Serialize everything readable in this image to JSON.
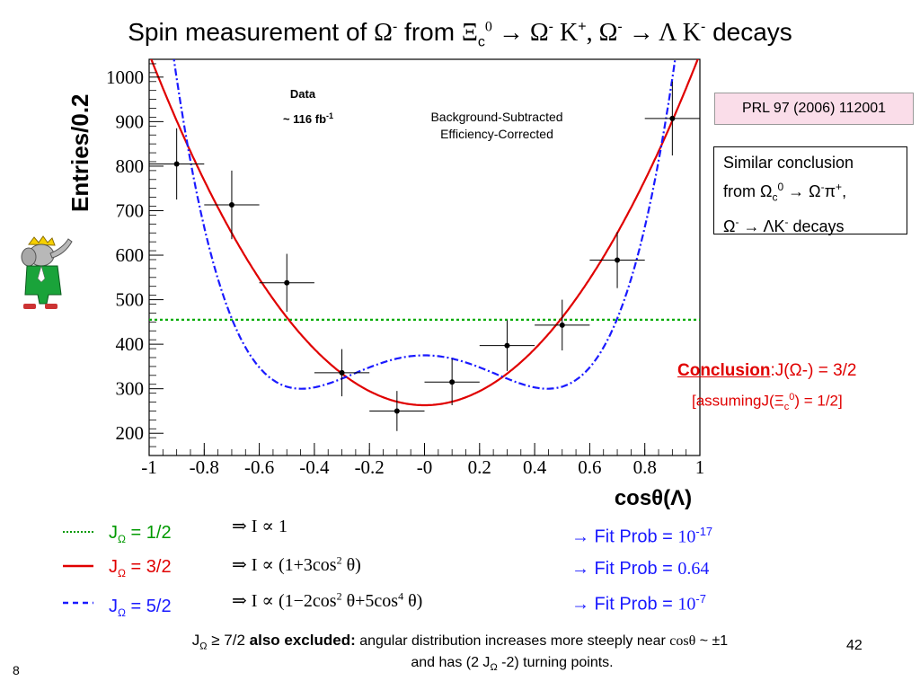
{
  "slide": {
    "title": {
      "prefix": "Spin measurement of ",
      "omega1": "Ω",
      "minus1": "-",
      "from": " from   ",
      "xi": "Ξ",
      "c": "c",
      "zero": "0",
      "arrow1": " → Ω",
      "minus2": "-",
      "k": " K",
      "plus": "+",
      "comma": ", Ω",
      "minus3": "-",
      "arrow2": " → Λ K",
      "minus4": "-",
      "decays": "  decays"
    },
    "reference": "PRL 97 (2006) 112001",
    "similar_box": {
      "line1": "Similar conclusion",
      "from": "from Ω",
      "c": "c",
      "zero": "0",
      "arrow": " → Ω",
      "minus1": "-",
      "pi": "π",
      "plus": "+",
      "comma": ",",
      "omega": "Ω",
      "minus2": "-",
      "arrow2": " → ΛK",
      "minus3": "-",
      "decays": " decays"
    },
    "conclusion": {
      "label": "Conclusion",
      "colon": ":",
      "j_text": "J(Ω-) = 3/2",
      "assume_prefix": "[assumingJ(Ξ",
      "assume_sub": "c",
      "assume_sup": "0",
      "assume_suffix": ") = 1/2]"
    },
    "hypotheses": [
      {
        "j_prefix": "J",
        "j_sub": "Ω",
        "j_value": " = 1/2",
        "formula": "⇒ I ∝ 1",
        "color": "#009900"
      },
      {
        "j_prefix": "J",
        "j_sub": "Ω",
        "j_value": " = 3/2",
        "formula_a": "⇒ I ∝ (1+3cos",
        "formula_sup": "2",
        "formula_b": " θ)",
        "color": "#e00000"
      },
      {
        "j_prefix": "J",
        "j_sub": "Ω",
        "j_value": " = 5/2",
        "formula_a": "⇒ I ∝ (1−2cos",
        "formula_sup": "2",
        "formula_b": " θ+5cos",
        "formula_sup2": "4",
        "formula_c": " θ)",
        "color": "#1a1aff"
      }
    ],
    "fit_probs": [
      {
        "prefix": "→ Fit Prob = ",
        "value": "10",
        "exp": "-17"
      },
      {
        "prefix": "→ Fit Prob = ",
        "value": "0.64",
        "exp": ""
      },
      {
        "prefix": "→ Fit Prob = ",
        "value": "10",
        "exp": "-7"
      }
    ],
    "bottom": {
      "j": "J",
      "j_sub": "Ω",
      "ge": " ≥ 7/2 ",
      "excluded": "also excluded",
      "colon": ":",
      "text1": " angular distribution increases more steeply near ",
      "cos": "cosθ",
      "pm": " ~ ±1",
      "text2": "and has (2 J",
      "text2_sub": "Ω",
      "text2_end": " -2) turning points."
    },
    "slide_number": "8",
    "page_number": "42"
  },
  "chart_data": {
    "type": "scatter",
    "title": "",
    "xlabel": "cosθ(Λ)",
    "ylabel": "Entries/0.2",
    "xlim": [
      -1,
      1
    ],
    "ylim": [
      150,
      1040
    ],
    "x_ticks": [
      -1,
      -0.8,
      -0.6,
      -0.4,
      -0.2,
      0,
      0.2,
      0.4,
      0.6,
      0.8,
      1
    ],
    "x_tick_labels": [
      "-1",
      "-0.8",
      "-0.6",
      "-0.4",
      "-0.2",
      "-0",
      "0.2",
      "0.4",
      "0.6",
      "0.8",
      "1"
    ],
    "y_ticks": [
      200,
      300,
      400,
      500,
      600,
      700,
      800,
      900,
      1000
    ],
    "y_tick_labels": [
      "200",
      "300",
      "400",
      "500",
      "600",
      "700",
      "800",
      "900",
      "1000"
    ],
    "annotations": {
      "data_label": "Data",
      "lumi": "~ 116 fb",
      "lumi_sup": "-1",
      "bg1": "Background-Subtracted",
      "bg2": "Efficiency-Corrected"
    },
    "points": [
      {
        "x": -0.9,
        "y": 805,
        "yerr": 80,
        "xerr": 0.1
      },
      {
        "x": -0.7,
        "y": 713,
        "yerr": 77,
        "xerr": 0.1
      },
      {
        "x": -0.5,
        "y": 538,
        "yerr": 65,
        "xerr": 0.1
      },
      {
        "x": -0.3,
        "y": 336,
        "yerr": 53,
        "xerr": 0.1
      },
      {
        "x": -0.1,
        "y": 250,
        "yerr": 45,
        "xerr": 0.1
      },
      {
        "x": 0.1,
        "y": 315,
        "yerr": 52,
        "xerr": 0.1
      },
      {
        "x": 0.3,
        "y": 397,
        "yerr": 57,
        "xerr": 0.1
      },
      {
        "x": 0.5,
        "y": 443,
        "yerr": 57,
        "xerr": 0.1
      },
      {
        "x": 0.7,
        "y": 589,
        "yerr": 63,
        "xerr": 0.1
      },
      {
        "x": 0.9,
        "y": 907,
        "yerr": 83,
        "xerr": 0.1
      }
    ],
    "fits": [
      {
        "spin": "1/2",
        "form": "a",
        "a": 455,
        "color": "#00aa00",
        "dash": "3,3"
      },
      {
        "spin": "3/2",
        "form": "a(1+b c^2)",
        "a": 263,
        "b": 3.0,
        "color": "#e00000",
        "dash": ""
      },
      {
        "spin": "5/2",
        "form": "a(1+b c^2+d c^4)",
        "a": 375,
        "b": -2.0,
        "d": 5.0,
        "color": "#1a1aff",
        "dash": "8,3,2,3"
      }
    ],
    "grid": false
  }
}
